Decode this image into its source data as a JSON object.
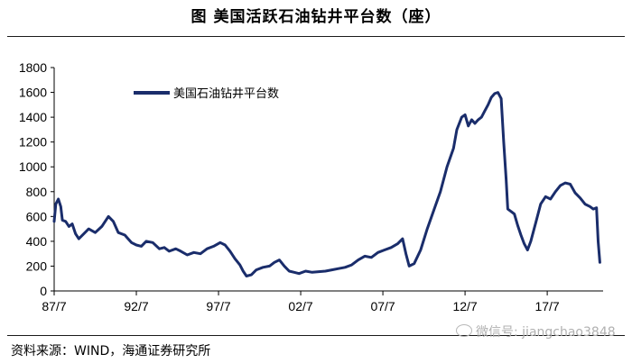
{
  "title": "图    美国活跃石油钻井平台数（座）",
  "source": "资料来源：WIND，海通证券研究所",
  "watermark": "微信号: jiangchao3848",
  "colors": {
    "series": "#1a2d6b",
    "axis": "#000000",
    "rule": "#1a1a1a"
  },
  "chart_data": {
    "type": "line",
    "title": "美国活跃石油钻井平台数（座）",
    "xlabel": "",
    "ylabel": "",
    "ylim": [
      0,
      1800
    ],
    "yticks": [
      0,
      200,
      400,
      600,
      800,
      1000,
      1200,
      1400,
      1600,
      1800
    ],
    "xticks": [
      "87/7",
      "92/7",
      "97/7",
      "02/7",
      "07/7",
      "12/7",
      "17/7"
    ],
    "xtick_positions": [
      1987.5,
      1992.5,
      1997.5,
      2002.5,
      2007.5,
      2012.5,
      2017.5
    ],
    "xlim": [
      1987.5,
      2020.9
    ],
    "grid": false,
    "legend_position": "top-left",
    "series": [
      {
        "name": "美国石油钻井平台数",
        "x": [
          1987.5,
          1987.6,
          1987.75,
          1987.9,
          1988.0,
          1988.2,
          1988.4,
          1988.6,
          1988.8,
          1989.0,
          1989.3,
          1989.6,
          1990.0,
          1990.4,
          1990.8,
          1991.1,
          1991.4,
          1991.8,
          1992.0,
          1992.2,
          1992.5,
          1992.8,
          1993.1,
          1993.5,
          1993.9,
          1994.2,
          1994.5,
          1994.9,
          1995.2,
          1995.6,
          1996.0,
          1996.4,
          1996.8,
          1997.2,
          1997.6,
          1997.9,
          1998.2,
          1998.5,
          1998.8,
          1999.0,
          1999.2,
          1999.5,
          1999.8,
          2000.2,
          2000.6,
          2000.9,
          2001.2,
          2001.5,
          2001.8,
          2002.1,
          2002.4,
          2002.8,
          2003.2,
          2003.6,
          2004.0,
          2004.4,
          2004.8,
          2005.2,
          2005.6,
          2006.0,
          2006.4,
          2006.8,
          2007.2,
          2007.6,
          2008.0,
          2008.4,
          2008.7,
          2008.9,
          2009.1,
          2009.4,
          2009.8,
          2010.2,
          2010.6,
          2011.0,
          2011.4,
          2011.8,
          2012.0,
          2012.3,
          2012.5,
          2012.7,
          2012.9,
          2013.1,
          2013.3,
          2013.5,
          2013.7,
          2013.9,
          2014.1,
          2014.3,
          2014.5,
          2014.7,
          2014.85,
          2015.0,
          2015.1,
          2015.3,
          2015.5,
          2015.7,
          2015.9,
          2016.1,
          2016.3,
          2016.5,
          2016.8,
          2017.1,
          2017.4,
          2017.7,
          2018.0,
          2018.3,
          2018.6,
          2018.9,
          2019.2,
          2019.5,
          2019.8,
          2020.1,
          2020.3,
          2020.5,
          2020.6,
          2020.7
        ],
        "values": [
          560,
          700,
          740,
          680,
          570,
          560,
          520,
          540,
          460,
          420,
          460,
          500,
          470,
          520,
          600,
          560,
          470,
          450,
          420,
          390,
          370,
          360,
          400,
          390,
          340,
          350,
          320,
          340,
          320,
          290,
          310,
          300,
          340,
          360,
          390,
          370,
          320,
          260,
          210,
          160,
          120,
          130,
          170,
          190,
          200,
          230,
          250,
          200,
          160,
          150,
          140,
          160,
          150,
          155,
          160,
          170,
          180,
          190,
          210,
          250,
          280,
          270,
          310,
          330,
          350,
          380,
          420,
          300,
          200,
          220,
          330,
          500,
          650,
          800,
          1000,
          1150,
          1300,
          1400,
          1420,
          1330,
          1380,
          1350,
          1380,
          1400,
          1450,
          1500,
          1560,
          1590,
          1600,
          1550,
          1200,
          900,
          660,
          640,
          620,
          530,
          450,
          380,
          330,
          400,
          550,
          700,
          760,
          740,
          800,
          850,
          870,
          860,
          790,
          750,
          700,
          680,
          660,
          670,
          400,
          230
        ]
      }
    ]
  }
}
